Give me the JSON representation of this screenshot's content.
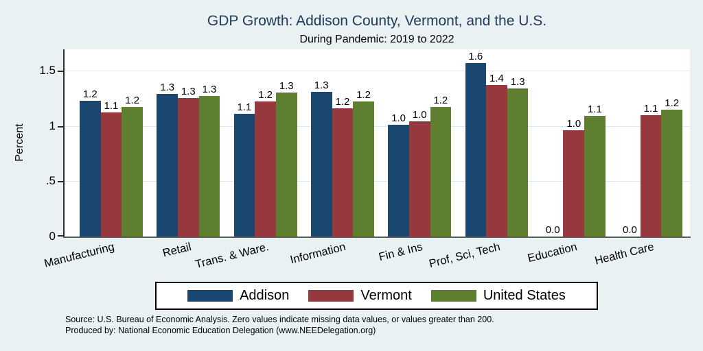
{
  "title": "GDP Growth: Addison County, Vermont, and the U.S.",
  "subtitle": "During Pandemic: 2019 to 2022",
  "y_axis_title": "Percent",
  "footer": {
    "source": "Source: U.S. Bureau of Economic Analysis. Zero values indicate missing data values, or values greater than 200.",
    "produced_by": "Produced by: National Economic Education Delegation (www.NEEDelegation.org)"
  },
  "colors": {
    "addison": "#1a476f",
    "vermont": "#95393e",
    "united_states": "#5f7f30",
    "background": "#eaf1f3",
    "plot_background": "#ffffff",
    "gridline": "#dde9ee",
    "title_text": "#20395c",
    "axis_line": "#5a5a5a"
  },
  "chart_data": {
    "type": "bar",
    "title": "GDP Growth: Addison County, Vermont, and the U.S.",
    "subtitle": "During Pandemic: 2019 to 2022",
    "xlabel": "",
    "ylabel": "Percent",
    "ylim": [
      0,
      1.69
    ],
    "grid": true,
    "legend_position": "bottom",
    "yticks": [
      {
        "value": 0,
        "label": "0"
      },
      {
        "value": 0.5,
        "label": ".5"
      },
      {
        "value": 1,
        "label": "1"
      },
      {
        "value": 1.5,
        "label": "1.5"
      }
    ],
    "categories": [
      "Manufacturing",
      "Retail",
      "Trans. & Ware.",
      "Information",
      "Fin & Ins",
      "Prof, Sci, Tech",
      "Education",
      "Health Care"
    ],
    "series": [
      {
        "name": "Addison",
        "color": "#1a476f",
        "values": [
          1.2,
          1.3,
          1.1,
          1.3,
          1.0,
          1.6,
          0.0,
          0.0
        ],
        "bar_heights": [
          1.23,
          1.29,
          1.11,
          1.31,
          1.01,
          1.57,
          0.0,
          0.0
        ]
      },
      {
        "name": "Vermont",
        "color": "#95393e",
        "values": [
          1.1,
          1.3,
          1.2,
          1.2,
          1.0,
          1.4,
          1.0,
          1.1
        ],
        "bar_heights": [
          1.12,
          1.25,
          1.22,
          1.16,
          1.04,
          1.37,
          0.96,
          1.1
        ]
      },
      {
        "name": "United States",
        "color": "#5f7f30",
        "values": [
          1.2,
          1.3,
          1.3,
          1.2,
          1.2,
          1.3,
          1.1,
          1.2
        ],
        "bar_heights": [
          1.17,
          1.27,
          1.3,
          1.22,
          1.17,
          1.34,
          1.09,
          1.15
        ]
      }
    ]
  }
}
